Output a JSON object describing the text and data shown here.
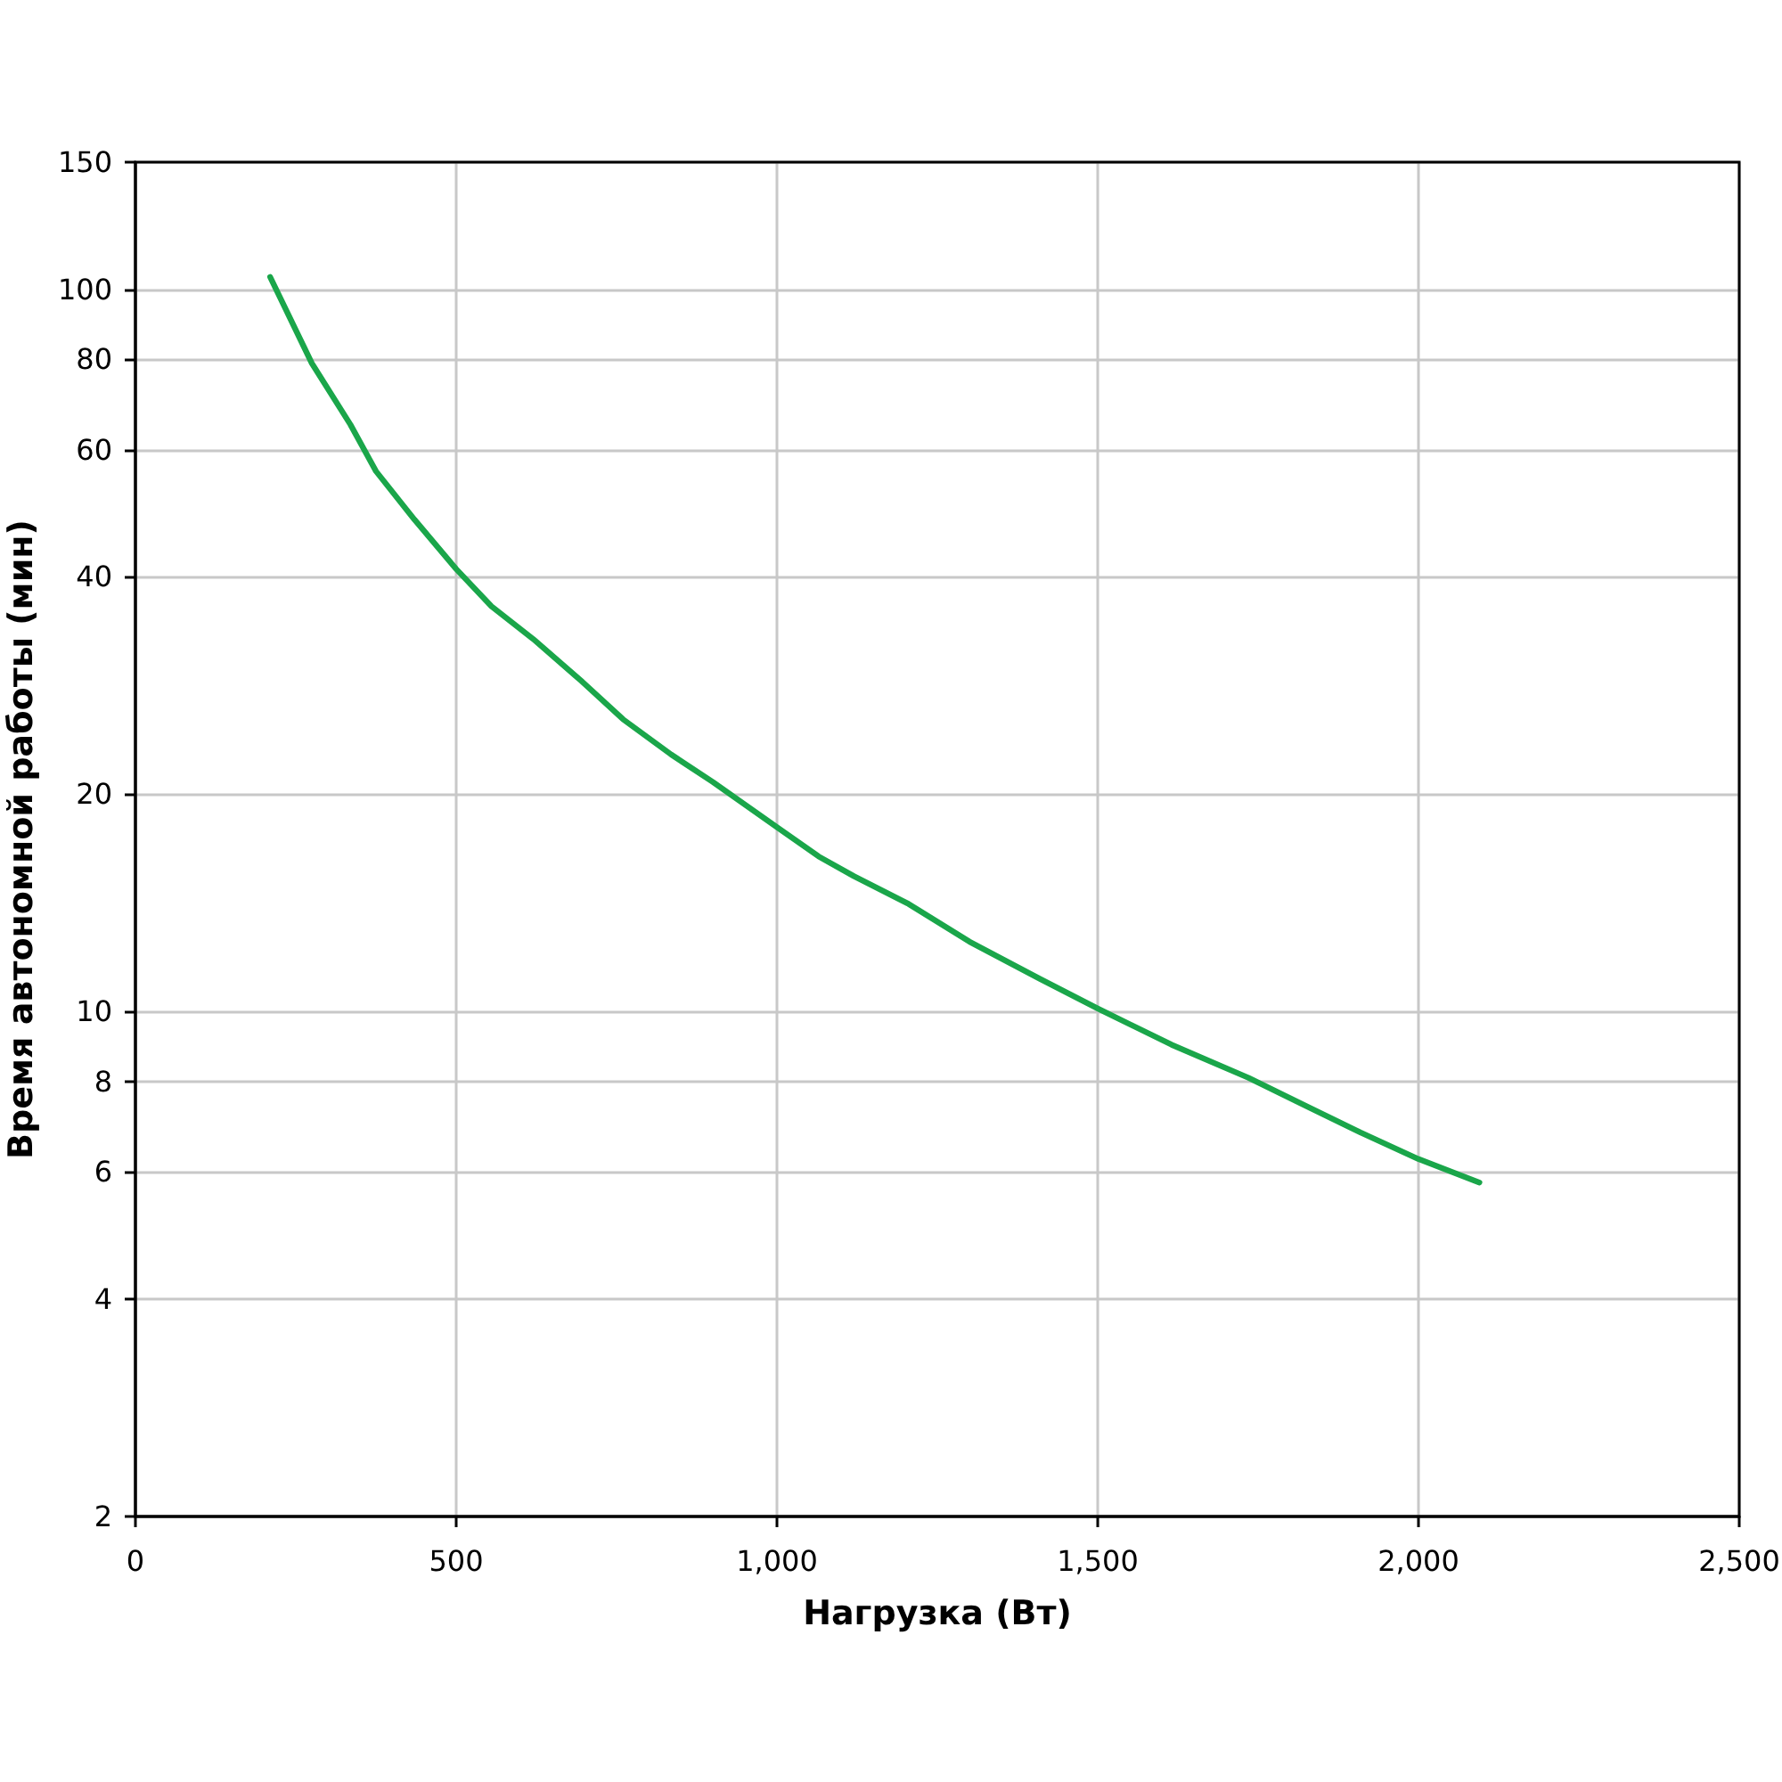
{
  "chart_data": {
    "type": "line",
    "xlabel": "Нагрузка (Вт)",
    "ylabel": "Время автономной работы (мин)",
    "x": [
      210,
      275,
      335,
      375,
      435,
      500,
      555,
      620,
      695,
      760,
      835,
      900,
      1000,
      1065,
      1120,
      1205,
      1300,
      1410,
      1500,
      1615,
      1735,
      1825,
      1910,
      2000,
      2095
    ],
    "values": [
      104,
      79,
      65,
      56,
      48,
      41,
      36.4,
      32.8,
      28.7,
      25.4,
      22.7,
      20.8,
      18,
      16.4,
      15.4,
      14.1,
      12.5,
      11.1,
      10.1,
      9.0,
      8.1,
      7.4,
      6.8,
      6.25,
      5.8
    ],
    "color": "#1aa64a",
    "marker": "none",
    "line_style": "solid",
    "log": "y",
    "grid": true,
    "xlim": [
      0,
      2500
    ],
    "xticks": [
      0,
      500,
      {
        "value": 1000,
        "label": "1,000"
      },
      {
        "value": 1500,
        "label": "1,500"
      },
      {
        "value": 2000,
        "label": "2,000"
      },
      {
        "value": 2500,
        "label": "2,500"
      }
    ],
    "ylim": [
      2,
      150
    ],
    "yticks": [
      2,
      4,
      6,
      8,
      10,
      20,
      40,
      60,
      80,
      100,
      150
    ]
  }
}
